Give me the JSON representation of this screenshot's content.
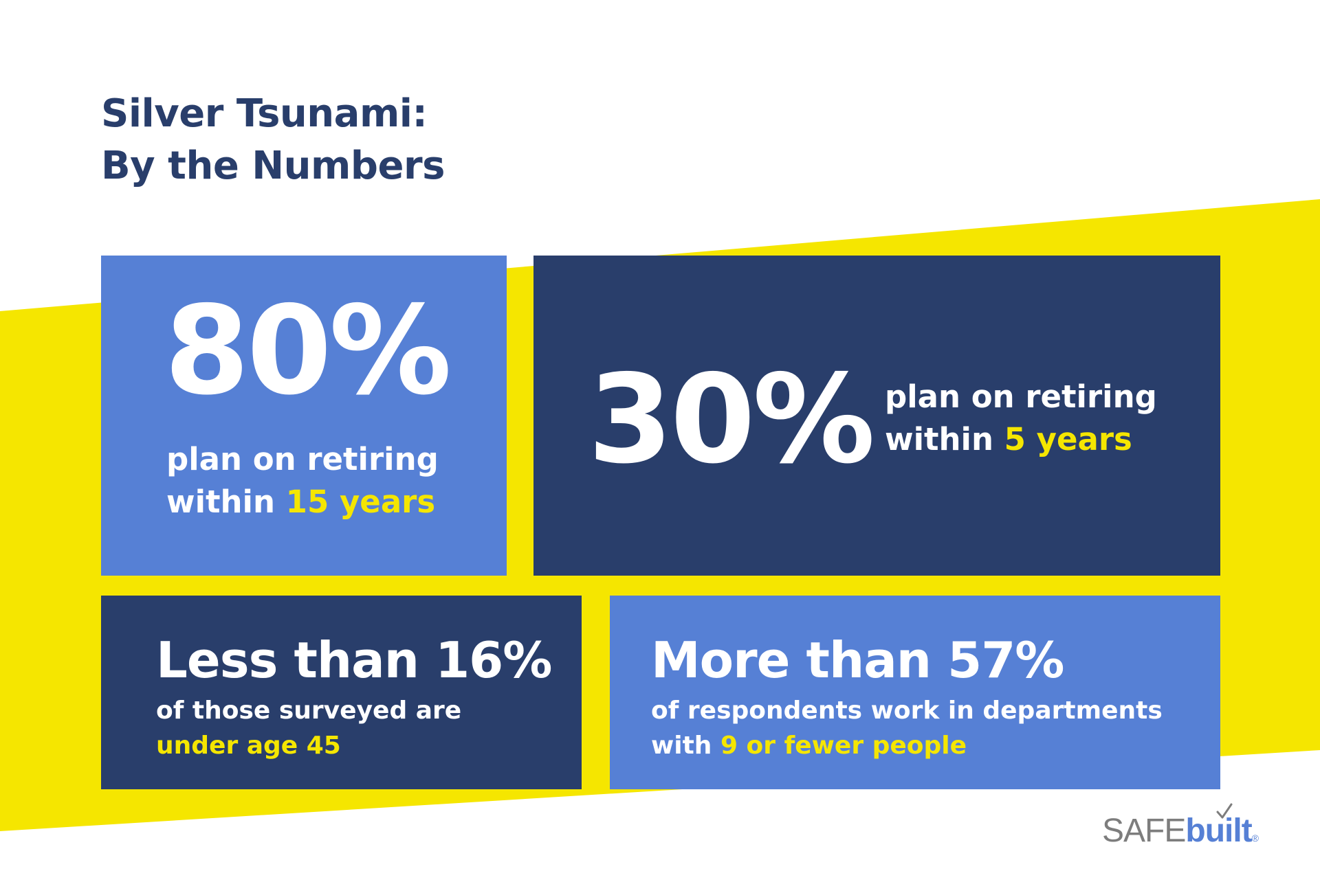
{
  "colors": {
    "navy": "#293e6b",
    "blue": "#5680d5",
    "yellow": "#f5e600",
    "white": "#ffffff",
    "gray": "#7d7d7d"
  },
  "title": {
    "line1": "Silver Tsunami:",
    "line2": "By the Numbers"
  },
  "stats": {
    "s80": {
      "value": "80%",
      "line1": "plan on retiring",
      "line2_plain": "within ",
      "line2_highlight": "15 years"
    },
    "s30": {
      "value": "30%",
      "line1": "plan on retiring",
      "line2_plain": "within ",
      "line2_highlight": "5 years"
    },
    "s16": {
      "headline": "Less than 16%",
      "line1": "of those surveyed are",
      "line2_highlight": "under age 45"
    },
    "s57": {
      "headline": "More than 57%",
      "line1": "of respondents work in departments",
      "line2_plain": "with ",
      "line2_highlight": "9 or fewer people"
    }
  },
  "logo": {
    "part1": "SAFE",
    "part2": "built",
    "mark": "®",
    "icon": "checkmark-icon"
  }
}
